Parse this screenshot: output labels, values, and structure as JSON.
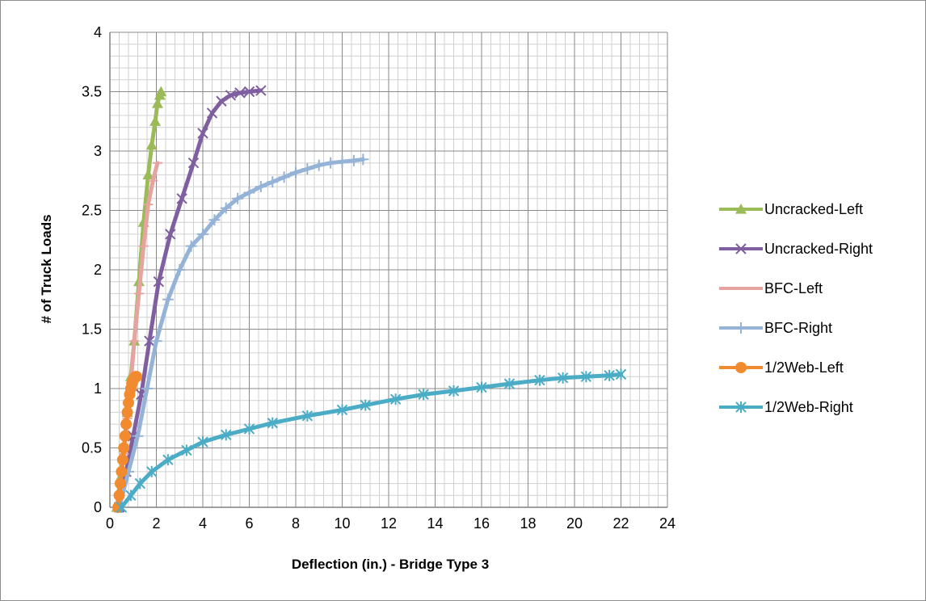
{
  "chart_data": {
    "type": "scatter",
    "title": "",
    "xlabel": "Deflection (in.) - Bridge Type 3",
    "ylabel": "# of Truck Loads",
    "xlim": [
      0,
      24
    ],
    "ylim": [
      0,
      4
    ],
    "x_major_ticks": [
      "0",
      "2",
      "4",
      "6",
      "8",
      "10",
      "12",
      "14",
      "16",
      "18",
      "20",
      "22",
      "24"
    ],
    "y_major_ticks": [
      "0",
      "0.5",
      "1",
      "1.5",
      "2",
      "2.5",
      "3",
      "3.5",
      "4"
    ],
    "grid": "major and minor",
    "legend_position": "right",
    "series": [
      {
        "name": "Uncracked-Left",
        "color": "#9bbb59",
        "marker": "triangle",
        "points": [
          [
            0.3,
            0
          ],
          [
            0.45,
            0.25
          ],
          [
            0.6,
            0.5
          ],
          [
            0.75,
            0.8
          ],
          [
            0.9,
            1.1
          ],
          [
            1.05,
            1.4
          ],
          [
            1.25,
            1.9
          ],
          [
            1.45,
            2.4
          ],
          [
            1.65,
            2.8
          ],
          [
            1.8,
            3.05
          ],
          [
            1.95,
            3.25
          ],
          [
            2.05,
            3.4
          ],
          [
            2.15,
            3.47
          ],
          [
            2.2,
            3.5
          ]
        ]
      },
      {
        "name": "Uncracked-Right",
        "color": "#7f5f9f",
        "marker": "x",
        "points": [
          [
            0.4,
            0
          ],
          [
            0.7,
            0.3
          ],
          [
            1.0,
            0.6
          ],
          [
            1.35,
            0.95
          ],
          [
            1.7,
            1.4
          ],
          [
            2.1,
            1.9
          ],
          [
            2.6,
            2.3
          ],
          [
            3.1,
            2.6
          ],
          [
            3.6,
            2.9
          ],
          [
            4.0,
            3.15
          ],
          [
            4.4,
            3.32
          ],
          [
            4.8,
            3.42
          ],
          [
            5.2,
            3.47
          ],
          [
            5.6,
            3.49
          ],
          [
            6.0,
            3.5
          ],
          [
            6.5,
            3.51
          ]
        ]
      },
      {
        "name": "BFC-Left",
        "color": "#e6a3a0",
        "marker": "dash",
        "points": [
          [
            0.3,
            0
          ],
          [
            0.45,
            0.2
          ],
          [
            0.6,
            0.45
          ],
          [
            0.75,
            0.75
          ],
          [
            0.9,
            1.05
          ],
          [
            1.05,
            1.4
          ],
          [
            1.25,
            1.8
          ],
          [
            1.45,
            2.2
          ],
          [
            1.65,
            2.55
          ],
          [
            1.85,
            2.75
          ],
          [
            2.05,
            2.9
          ]
        ]
      },
      {
        "name": "BFC-Right",
        "color": "#95b3d7",
        "marker": "plus",
        "points": [
          [
            0.4,
            0
          ],
          [
            0.8,
            0.3
          ],
          [
            1.2,
            0.6
          ],
          [
            1.6,
            1.0
          ],
          [
            2.0,
            1.4
          ],
          [
            2.5,
            1.75
          ],
          [
            3.0,
            2.0
          ],
          [
            3.5,
            2.2
          ],
          [
            4.0,
            2.3
          ],
          [
            4.5,
            2.42
          ],
          [
            5.0,
            2.52
          ],
          [
            5.5,
            2.6
          ],
          [
            6.0,
            2.65
          ],
          [
            6.5,
            2.7
          ],
          [
            7.0,
            2.74
          ],
          [
            7.5,
            2.78
          ],
          [
            8.0,
            2.82
          ],
          [
            8.5,
            2.85
          ],
          [
            9.0,
            2.88
          ],
          [
            9.5,
            2.9
          ],
          [
            10.0,
            2.91
          ],
          [
            10.5,
            2.92
          ],
          [
            10.9,
            2.93
          ]
        ]
      },
      {
        "name": "1/2Web-Left",
        "color": "#f28b30",
        "marker": "circle",
        "points": [
          [
            0.35,
            0
          ],
          [
            0.4,
            0.1
          ],
          [
            0.45,
            0.2
          ],
          [
            0.5,
            0.3
          ],
          [
            0.55,
            0.4
          ],
          [
            0.6,
            0.5
          ],
          [
            0.65,
            0.6
          ],
          [
            0.7,
            0.7
          ],
          [
            0.75,
            0.8
          ],
          [
            0.8,
            0.88
          ],
          [
            0.85,
            0.95
          ],
          [
            0.9,
            1.0
          ],
          [
            0.95,
            1.04
          ],
          [
            1.0,
            1.07
          ],
          [
            1.05,
            1.09
          ],
          [
            1.1,
            1.1
          ],
          [
            1.15,
            1.1
          ]
        ]
      },
      {
        "name": "1/2Web-Right",
        "color": "#4bacc6",
        "marker": "asterisk",
        "points": [
          [
            0.5,
            0
          ],
          [
            0.9,
            0.1
          ],
          [
            1.3,
            0.2
          ],
          [
            1.8,
            0.3
          ],
          [
            2.5,
            0.4
          ],
          [
            3.3,
            0.48
          ],
          [
            4.0,
            0.55
          ],
          [
            5.0,
            0.61
          ],
          [
            6.0,
            0.66
          ],
          [
            7.0,
            0.71
          ],
          [
            8.5,
            0.77
          ],
          [
            10.0,
            0.82
          ],
          [
            11.0,
            0.86
          ],
          [
            12.3,
            0.91
          ],
          [
            13.5,
            0.95
          ],
          [
            14.8,
            0.98
          ],
          [
            16.0,
            1.01
          ],
          [
            17.2,
            1.04
          ],
          [
            18.5,
            1.07
          ],
          [
            19.5,
            1.09
          ],
          [
            20.5,
            1.1
          ],
          [
            21.5,
            1.11
          ],
          [
            22.0,
            1.12
          ]
        ]
      }
    ]
  }
}
